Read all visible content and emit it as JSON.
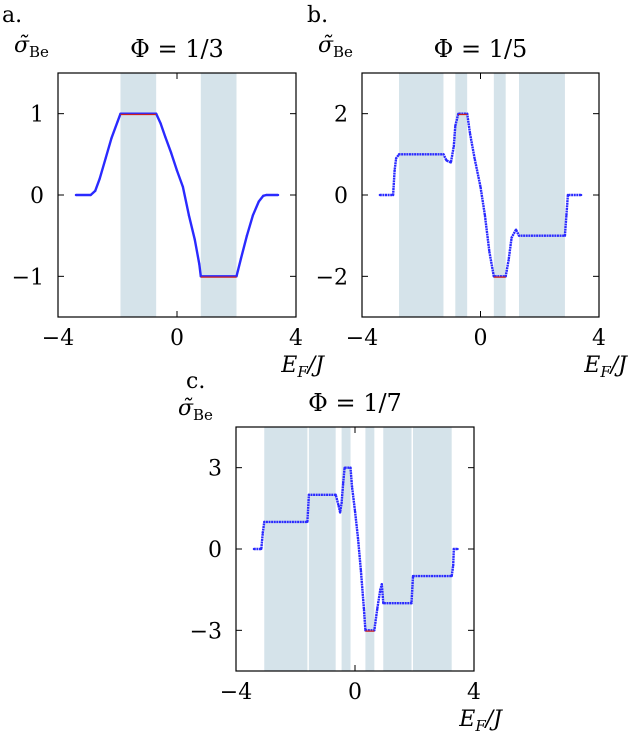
{
  "chart_data": [
    {
      "type": "line",
      "panel_label": "a.",
      "title": "Φ = 1/3",
      "ylabel": "σ̃",
      "ylabel_sub": "Be",
      "xlabel": "E",
      "xlabel_sub": "F",
      "xlabel_suffix": "/J",
      "xlim": [
        -4,
        4
      ],
      "ylim": [
        -1.5,
        1.5
      ],
      "xticks": [
        -4,
        0,
        4
      ],
      "xtick_labels": [
        "−4",
        "0",
        "4"
      ],
      "yticks": [
        1,
        0,
        -1
      ],
      "ytick_labels": [
        "1",
        "0",
        "−1"
      ],
      "shaded_regions": [
        [
          -1.9,
          -0.7
        ],
        [
          0.8,
          2.0
        ]
      ],
      "colors": {
        "series": "#2a2aff",
        "overlay": "#cc2020",
        "shade": "#d5e3ea"
      },
      "series": [
        {
          "points": [
            [
              -3.4,
              0
            ],
            [
              -2.9,
              0
            ],
            [
              -2.75,
              0.05
            ],
            [
              -2.6,
              0.2
            ],
            [
              -2.4,
              0.45
            ],
            [
              -2.2,
              0.7
            ],
            [
              -2.0,
              0.9
            ],
            [
              -1.9,
              1.0
            ],
            [
              -0.7,
              1.0
            ],
            [
              -0.55,
              0.88
            ],
            [
              -0.4,
              0.72
            ],
            [
              -0.2,
              0.52
            ],
            [
              0.0,
              0.3
            ],
            [
              0.2,
              0.1
            ],
            [
              0.4,
              -0.25
            ],
            [
              0.6,
              -0.55
            ],
            [
              0.75,
              -0.85
            ],
            [
              0.8,
              -1.0
            ],
            [
              2.0,
              -1.0
            ],
            [
              2.15,
              -0.78
            ],
            [
              2.35,
              -0.5
            ],
            [
              2.55,
              -0.25
            ],
            [
              2.75,
              -0.08
            ],
            [
              2.9,
              -0.01
            ],
            [
              3.0,
              0
            ],
            [
              3.4,
              0
            ]
          ]
        }
      ],
      "overlay_segments": [
        [
          [
            -1.9,
            1.0
          ],
          [
            -0.7,
            1.0
          ]
        ],
        [
          [
            0.8,
            -1.0
          ],
          [
            2.0,
            -1.0
          ]
        ]
      ]
    },
    {
      "type": "scatter",
      "panel_label": "b.",
      "title": "Φ = 1/5",
      "ylabel": "σ̃",
      "ylabel_sub": "Be",
      "xlabel": "E",
      "xlabel_sub": "F",
      "xlabel_suffix": "/J",
      "xlim": [
        -4,
        4
      ],
      "ylim": [
        -3,
        3
      ],
      "xticks": [
        -4,
        0,
        4
      ],
      "xtick_labels": [
        "−4",
        "0",
        "4"
      ],
      "yticks": [
        2,
        0,
        -2
      ],
      "ytick_labels": [
        "2",
        "0",
        "−2"
      ],
      "shaded_regions": [
        [
          -2.75,
          -1.25
        ],
        [
          -0.85,
          -0.45
        ],
        [
          0.45,
          0.85
        ],
        [
          1.3,
          2.85
        ]
      ],
      "colors": {
        "series": "#2a2aff",
        "overlay": "#cc2020",
        "shade": "#d5e3ea"
      },
      "series": [
        {
          "points": [
            [
              -3.4,
              0
            ],
            [
              -2.95,
              0
            ],
            [
              -2.9,
              0.6
            ],
            [
              -2.85,
              0.9
            ],
            [
              -2.75,
              1.0
            ],
            [
              -1.25,
              1.0
            ],
            [
              -1.15,
              0.85
            ],
            [
              -1.0,
              0.8
            ],
            [
              -0.9,
              1.2
            ],
            [
              -0.85,
              1.7
            ],
            [
              -0.75,
              2.0
            ],
            [
              -0.45,
              2.0
            ],
            [
              -0.35,
              1.5
            ],
            [
              -0.2,
              0.9
            ],
            [
              0.0,
              0.2
            ],
            [
              0.15,
              -0.5
            ],
            [
              0.3,
              -1.4
            ],
            [
              0.45,
              -2.0
            ],
            [
              0.85,
              -2.0
            ],
            [
              0.95,
              -1.6
            ],
            [
              1.05,
              -1.05
            ],
            [
              1.2,
              -0.85
            ],
            [
              1.3,
              -1.0
            ],
            [
              2.85,
              -1.0
            ],
            [
              2.9,
              -0.5
            ],
            [
              2.95,
              0
            ],
            [
              3.4,
              0
            ]
          ]
        }
      ],
      "overlay_segments": [
        [
          [
            -0.75,
            2.0
          ],
          [
            -0.45,
            2.0
          ]
        ],
        [
          [
            0.45,
            -2.0
          ],
          [
            0.85,
            -2.0
          ]
        ]
      ]
    },
    {
      "type": "scatter",
      "panel_label": "c.",
      "title": "Φ = 1/7",
      "ylabel": "σ̃",
      "ylabel_sub": "Be",
      "xlabel": "E",
      "xlabel_sub": "F",
      "xlabel_suffix": "/J",
      "xlim": [
        -4,
        4
      ],
      "ylim": [
        -4.5,
        4.5
      ],
      "xticks": [
        -4,
        0,
        4
      ],
      "xtick_labels": [
        "−4",
        "0",
        "4"
      ],
      "yticks": [
        3,
        0,
        -3
      ],
      "ytick_labels": [
        "3",
        "0",
        "−3"
      ],
      "shaded_regions": [
        [
          -3.05,
          -1.6
        ],
        [
          -1.55,
          -0.65
        ],
        [
          -0.45,
          -0.15
        ],
        [
          0.35,
          0.65
        ],
        [
          0.95,
          1.9
        ],
        [
          1.95,
          3.25
        ]
      ],
      "colors": {
        "series": "#2a2aff",
        "overlay": "#cc2020",
        "shade": "#d5e3ea"
      },
      "series": [
        {
          "points": [
            [
              -3.4,
              0
            ],
            [
              -3.15,
              0
            ],
            [
              -3.1,
              0.6
            ],
            [
              -3.05,
              1.0
            ],
            [
              -1.6,
              1.0
            ],
            [
              -1.55,
              2.0
            ],
            [
              -0.65,
              2.0
            ],
            [
              -0.55,
              1.6
            ],
            [
              -0.5,
              1.35
            ],
            [
              -0.45,
              1.7
            ],
            [
              -0.4,
              2.4
            ],
            [
              -0.35,
              3.0
            ],
            [
              -0.15,
              3.0
            ],
            [
              -0.1,
              2.3
            ],
            [
              0.0,
              1.4
            ],
            [
              0.1,
              0.4
            ],
            [
              0.2,
              -0.8
            ],
            [
              0.3,
              -2.2
            ],
            [
              0.35,
              -3.0
            ],
            [
              0.65,
              -3.0
            ],
            [
              0.75,
              -2.2
            ],
            [
              0.85,
              -1.5
            ],
            [
              0.9,
              -1.3
            ],
            [
              0.95,
              -2.0
            ],
            [
              1.9,
              -2.0
            ],
            [
              1.95,
              -1.0
            ],
            [
              3.25,
              -1.0
            ],
            [
              3.3,
              -0.6
            ],
            [
              3.32,
              0
            ],
            [
              3.45,
              0
            ]
          ]
        }
      ],
      "overlay_segments": [
        [
          [
            0.35,
            -3.0
          ],
          [
            0.65,
            -3.0
          ]
        ]
      ]
    }
  ]
}
